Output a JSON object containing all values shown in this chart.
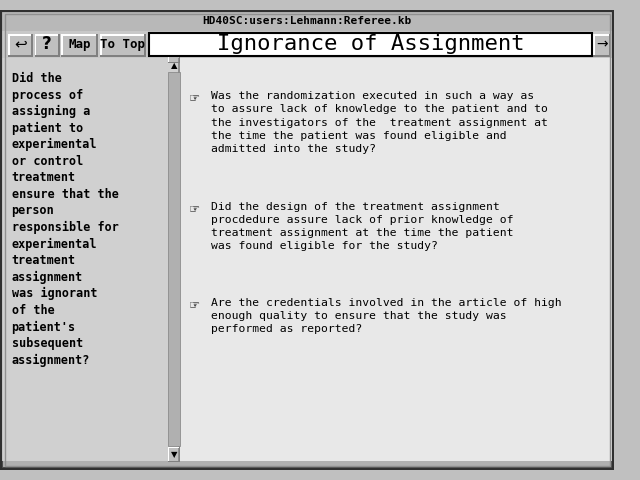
{
  "title_bar": "HD40SC:users:Lehmann:Referee.kb",
  "main_title": "Ignorance of Assignment",
  "left_panel_text": "Did the\nprocess of\nassigning a\npatient to\nexperimental\nor control\ntreatment\nensure that the\nperson\nresponsible for\nexperimental\ntreatment\nassignment\nwas ignorant\nof the\npatient's\nsubsequent\nassignment?",
  "questions": [
    "Was the randomization executed in such a way as\nto assure lack of knowledge to the patient and to\nthe investigators of the  treatment assignment at\nthe time the patient was found eligible and\nadmitted into the study?",
    "Did the design of the treatment assignment\nprocdedure assure lack of prior knowledge of\ntreatment assignment at the time the patient\nwas found eligible for the study?",
    "Are the credentials involved in the article of high\nenough quality to ensure that the study was\nperformed as reported?"
  ],
  "nav_buttons": [
    "Map",
    "To Top"
  ],
  "bg_color": "#c0c0c0",
  "dark_color": "#404040",
  "light_color": "#f0f0f0",
  "text_color": "#000000",
  "title_bg": "#ffffff",
  "panel_bg": "#d8d8d8",
  "right_bg": "#e8e8e8"
}
